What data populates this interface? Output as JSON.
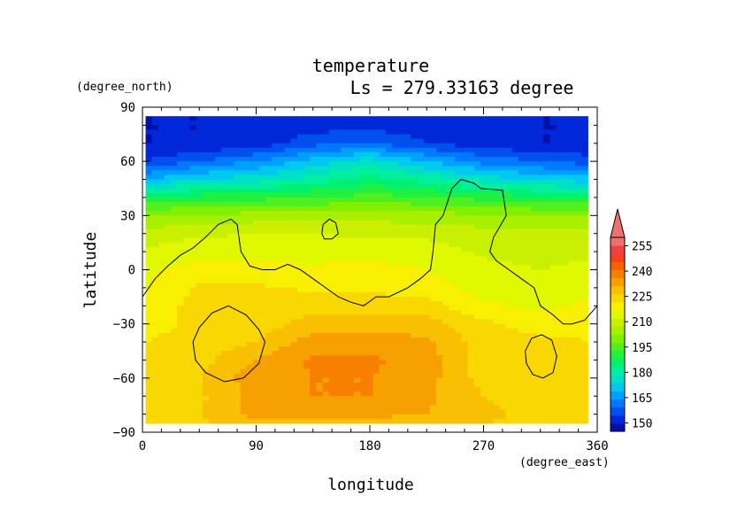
{
  "chart_data": {
    "type": "heatmap",
    "title": "temperature",
    "subtitle": "Ls = 279.33163 degree",
    "xlabel": "longitude",
    "ylabel": "latitude",
    "x_units": "(degree_east)",
    "y_units": "(degree_north)",
    "xlim": [
      0,
      360
    ],
    "ylim": [
      -90,
      90
    ],
    "x_ticks": [
      0,
      90,
      180,
      270,
      360
    ],
    "y_ticks": [
      90,
      60,
      30,
      0,
      -30,
      -60,
      -90
    ],
    "x_tick_labels": [
      "0",
      "90",
      "180",
      "270",
      "360"
    ],
    "y_tick_labels": [
      "90",
      "60",
      "30",
      "0",
      "−30",
      "−60",
      "−90"
    ],
    "colorbar": {
      "levels": [
        145,
        150,
        155,
        160,
        165,
        170,
        175,
        180,
        185,
        190,
        195,
        200,
        205,
        210,
        215,
        220,
        225,
        230,
        235,
        240,
        245,
        250,
        255,
        260
      ],
      "labeled_ticks": [
        150,
        165,
        180,
        195,
        210,
        225,
        240,
        255
      ],
      "labeled_tick_labels": [
        "150",
        "165",
        "180",
        "195",
        "210",
        "225",
        "240",
        "255"
      ],
      "colors": [
        "#0010a8",
        "#0028d8",
        "#0050f0",
        "#0078ff",
        "#00a0ff",
        "#00c8f0",
        "#00e0c8",
        "#00f0a0",
        "#00f070",
        "#20f040",
        "#50f020",
        "#80f000",
        "#a8f000",
        "#c8f000",
        "#e0f800",
        "#f8f000",
        "#f8d800",
        "#f8c000",
        "#f8a000",
        "#f88000",
        "#f86000",
        "#f84020",
        "#f04040",
        "#f07070"
      ],
      "extend": "max"
    },
    "temperature_grid": {
      "lon": [
        0,
        45,
        90,
        135,
        180,
        225,
        270,
        315,
        360
      ],
      "lat": [
        85,
        70,
        60,
        50,
        40,
        30,
        20,
        10,
        0,
        -10,
        -20,
        -30,
        -40,
        -50,
        -60,
        -70,
        -80,
        -85
      ],
      "values": [
        [
          150,
          150,
          150,
          150,
          150,
          150,
          150,
          150,
          150
        ],
        [
          150,
          150,
          152,
          158,
          160,
          155,
          152,
          150,
          150
        ],
        [
          155,
          160,
          165,
          172,
          178,
          170,
          163,
          160,
          157
        ],
        [
          170,
          175,
          178,
          182,
          187,
          183,
          178,
          174,
          172
        ],
        [
          190,
          192,
          193,
          195,
          197,
          195,
          193,
          191,
          190
        ],
        [
          205,
          206,
          207,
          207,
          208,
          207,
          206,
          205,
          205
        ],
        [
          212,
          214,
          215,
          215,
          214,
          214,
          212,
          211,
          211
        ],
        [
          216,
          218,
          219,
          218,
          218,
          217,
          214,
          213,
          214
        ],
        [
          219,
          222,
          221,
          221,
          222,
          220,
          217,
          215,
          217
        ],
        [
          219,
          226,
          226,
          224,
          224,
          222,
          218,
          217,
          219
        ],
        [
          221,
          227,
          227,
          228,
          228,
          227,
          221,
          219,
          221
        ],
        [
          223,
          226,
          227,
          232,
          233,
          232,
          226,
          223,
          223
        ],
        [
          225,
          227,
          230,
          238,
          238,
          236,
          227,
          226,
          225
        ],
        [
          226,
          228,
          235,
          241,
          241,
          238,
          227,
          227,
          226
        ],
        [
          227,
          230,
          238,
          240,
          240,
          237,
          228,
          227,
          227
        ],
        [
          228,
          229,
          237,
          240,
          240,
          236,
          230,
          228,
          228
        ],
        [
          228,
          230,
          237,
          238,
          237,
          235,
          231,
          229,
          228
        ],
        [
          228,
          229,
          232,
          232,
          232,
          231,
          230,
          229,
          228
        ]
      ]
    },
    "topography_contours": [
      {
        "name": "northern-highland-boundary",
        "points": [
          [
            0,
            -15
          ],
          [
            10,
            -5
          ],
          [
            20,
            2
          ],
          [
            30,
            8
          ],
          [
            40,
            12
          ],
          [
            50,
            18
          ],
          [
            60,
            25
          ],
          [
            70,
            28
          ],
          [
            75,
            25
          ],
          [
            77,
            15
          ],
          [
            78,
            10
          ],
          [
            85,
            2
          ],
          [
            95,
            0
          ],
          [
            105,
            0
          ],
          [
            115,
            3
          ],
          [
            125,
            0
          ],
          [
            135,
            -5
          ],
          [
            145,
            -10
          ],
          [
            155,
            -15
          ],
          [
            165,
            -18
          ],
          [
            175,
            -20
          ],
          [
            185,
            -15
          ],
          [
            195,
            -15
          ],
          [
            210,
            -10
          ],
          [
            220,
            -5
          ],
          [
            228,
            0
          ],
          [
            230,
            10
          ],
          [
            232,
            25
          ],
          [
            238,
            30
          ],
          [
            245,
            45
          ],
          [
            252,
            50
          ],
          [
            262,
            48
          ],
          [
            268,
            45
          ],
          [
            285,
            44
          ],
          [
            288,
            30
          ],
          [
            278,
            18
          ],
          [
            275,
            10
          ],
          [
            280,
            5
          ],
          [
            290,
            0
          ],
          [
            300,
            -5
          ],
          [
            310,
            -10
          ],
          [
            315,
            -20
          ],
          [
            325,
            -25
          ],
          [
            333,
            -30
          ],
          [
            340,
            -30
          ],
          [
            350,
            -28
          ],
          [
            360,
            -20
          ]
        ]
      },
      {
        "name": "small-northern-ridge",
        "points": [
          [
            142,
            20
          ],
          [
            143,
            25
          ],
          [
            148,
            28
          ],
          [
            153,
            26
          ],
          [
            155,
            20
          ],
          [
            150,
            17
          ],
          [
            144,
            17
          ],
          [
            142,
            20
          ]
        ]
      },
      {
        "name": "hellas-basin-rim",
        "points": [
          [
            40,
            -40
          ],
          [
            45,
            -32
          ],
          [
            55,
            -24
          ],
          [
            68,
            -20
          ],
          [
            82,
            -25
          ],
          [
            92,
            -33
          ],
          [
            97,
            -40
          ],
          [
            92,
            -52
          ],
          [
            80,
            -60
          ],
          [
            65,
            -62
          ],
          [
            50,
            -57
          ],
          [
            42,
            -50
          ],
          [
            40,
            -40
          ]
        ]
      },
      {
        "name": "argyre-basin-rim",
        "points": [
          [
            303,
            -45
          ],
          [
            308,
            -38
          ],
          [
            316,
            -36
          ],
          [
            324,
            -39
          ],
          [
            328,
            -48
          ],
          [
            325,
            -57
          ],
          [
            317,
            -60
          ],
          [
            309,
            -58
          ],
          [
            304,
            -52
          ],
          [
            303,
            -45
          ]
        ]
      }
    ]
  }
}
